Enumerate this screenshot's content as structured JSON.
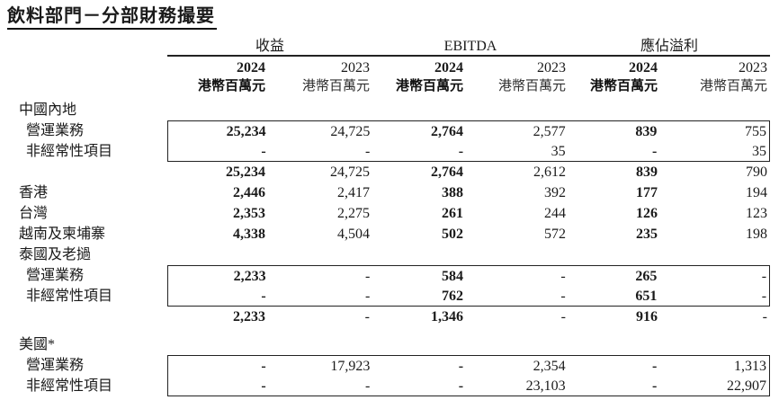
{
  "title": "飲料部門－分部財務撮要",
  "table": {
    "group_headers": [
      {
        "label": "收益"
      },
      {
        "label": "EBITDA"
      },
      {
        "label": "應佔溢利"
      }
    ],
    "year_headers": [
      "2024",
      "2023",
      "2024",
      "2023",
      "2024",
      "2023"
    ],
    "unit_label": "港幣百萬元",
    "rows": [
      {
        "label": "中國內地",
        "type": "section",
        "indent": 0,
        "values": [
          "",
          "",
          "",
          "",
          "",
          ""
        ]
      },
      {
        "label": "營運業務",
        "type": "data",
        "indent": 1,
        "box": "top",
        "values": [
          "25,234",
          "24,725",
          "2,764",
          "2,577",
          "839",
          "755"
        ]
      },
      {
        "label": "非經常性項目",
        "type": "data",
        "indent": 1,
        "box": "bottom",
        "values": [
          "-",
          "-",
          "-",
          "35",
          "-",
          "35"
        ]
      },
      {
        "label": "",
        "type": "subtotal",
        "indent": 0,
        "values": [
          "25,234",
          "24,725",
          "2,764",
          "2,612",
          "839",
          "790"
        ]
      },
      {
        "label": "香港",
        "type": "data",
        "indent": 0,
        "values": [
          "2,446",
          "2,417",
          "388",
          "392",
          "177",
          "194"
        ]
      },
      {
        "label": "台灣",
        "type": "data",
        "indent": 0,
        "values": [
          "2,353",
          "2,275",
          "261",
          "244",
          "126",
          "123"
        ]
      },
      {
        "label": "越南及柬埔寨",
        "type": "data",
        "indent": 0,
        "values": [
          "4,338",
          "4,504",
          "502",
          "572",
          "235",
          "198"
        ]
      },
      {
        "label": "泰國及老撾",
        "type": "section",
        "indent": 0,
        "values": [
          "",
          "",
          "",
          "",
          "",
          ""
        ]
      },
      {
        "label": "營運業務",
        "type": "data",
        "indent": 1,
        "box": "top",
        "values": [
          "2,233",
          "-",
          "584",
          "-",
          "265",
          "-"
        ]
      },
      {
        "label": "非經常性項目",
        "type": "data",
        "indent": 1,
        "box": "bottom",
        "values": [
          "-",
          "-",
          "762",
          "-",
          "651",
          "-"
        ]
      },
      {
        "label": "",
        "type": "subtotal",
        "indent": 0,
        "values": [
          "2,233",
          "-",
          "1,346",
          "-",
          "916",
          "-"
        ]
      },
      {
        "label": "美國*",
        "type": "section",
        "indent": 0,
        "spacer_before": true,
        "values": [
          "",
          "",
          "",
          "",
          "",
          ""
        ]
      },
      {
        "label": "營運業務",
        "type": "data",
        "indent": 1,
        "box": "top",
        "values": [
          "-",
          "17,923",
          "-",
          "2,354",
          "-",
          "1,313"
        ]
      },
      {
        "label": "非經常性項目",
        "type": "data",
        "indent": 1,
        "box": "bottom",
        "values": [
          "-",
          "-",
          "-",
          "23,103",
          "-",
          "22,907"
        ]
      }
    ]
  }
}
